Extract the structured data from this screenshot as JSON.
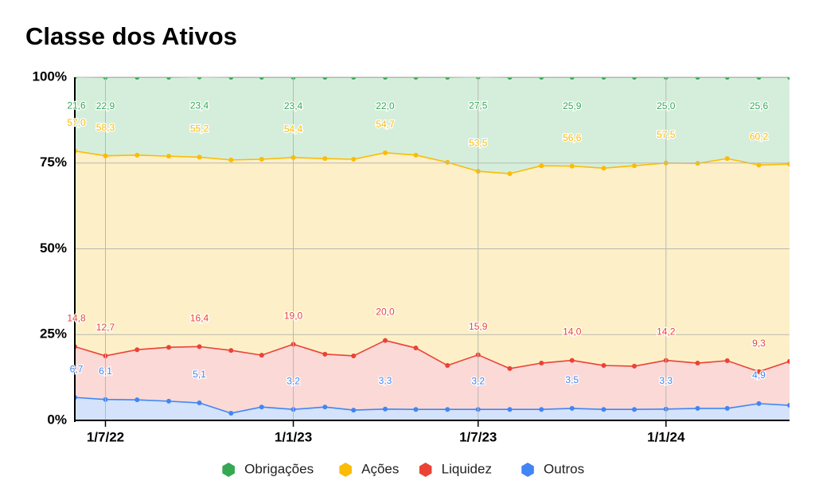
{
  "chart_data": {
    "type": "stacked_area",
    "title": "Classe dos Ativos",
    "x": [
      "2022-06-01",
      "2022-07-01",
      "2022-08-01",
      "2022-09-01",
      "2022-10-01",
      "2022-11-01",
      "2022-12-01",
      "2023-01-01",
      "2023-02-01",
      "2023-03-01",
      "2023-04-01",
      "2023-05-01",
      "2023-06-01",
      "2023-07-01",
      "2023-08-01",
      "2023-09-01",
      "2023-10-01",
      "2023-11-01",
      "2023-12-01",
      "2024-01-01",
      "2024-02-01",
      "2024-03-01",
      "2024-04-01",
      "2024-05-01"
    ],
    "xlim": [
      "2022-06-01",
      "2024-05-01"
    ],
    "xticks": [
      {
        "value": "2022-07-01",
        "label": "1/7/22"
      },
      {
        "value": "2023-01-01",
        "label": "1/1/23"
      },
      {
        "value": "2023-07-01",
        "label": "1/7/23"
      },
      {
        "value": "2024-01-01",
        "label": "1/1/24"
      }
    ],
    "ylim": [
      0,
      100
    ],
    "yticks": [
      {
        "value": 0,
        "label": "0%"
      },
      {
        "value": 25,
        "label": "25%"
      },
      {
        "value": 50,
        "label": "50%"
      },
      {
        "value": 75,
        "label": "75%"
      },
      {
        "value": 100,
        "label": "100%"
      }
    ],
    "grid": true,
    "legend": "bottom",
    "series": [
      {
        "name": "Obrigações",
        "color": "#34a853",
        "fill": "#d5eedc",
        "values": [
          21.6,
          22.9,
          22.7,
          23.0,
          23.4,
          24.1,
          23.9,
          23.4,
          23.7,
          23.9,
          22.0,
          22.7,
          24.8,
          27.5,
          28.1,
          25.8,
          25.9,
          26.5,
          25.8,
          25.0,
          25.1,
          23.7,
          25.6,
          25.3
        ],
        "value_labels": [
          "21,6",
          "22,9",
          null,
          null,
          "23,4",
          null,
          null,
          "23,4",
          null,
          null,
          "22,0",
          null,
          null,
          "27,5",
          null,
          null,
          "25,9",
          null,
          null,
          "25,0",
          null,
          null,
          "25,6",
          null
        ]
      },
      {
        "name": "Ações",
        "color": "#fbbc04",
        "fill": "#fdf0c8",
        "values": [
          57.0,
          58.3,
          56.7,
          55.7,
          55.2,
          55.5,
          57.1,
          54.4,
          57.0,
          57.3,
          54.7,
          56.2,
          59.2,
          53.5,
          56.8,
          57.5,
          56.6,
          57.5,
          58.4,
          57.5,
          58.2,
          58.9,
          60.2,
          57.5
        ],
        "value_labels": [
          "57,0",
          "58,3",
          null,
          null,
          "55,2",
          null,
          null,
          "54,4",
          null,
          null,
          "54,7",
          null,
          null,
          "53,5",
          null,
          null,
          "56,6",
          null,
          null,
          "57,5",
          null,
          null,
          "60,2",
          null
        ]
      },
      {
        "name": "Liquidez",
        "color": "#ea4335",
        "fill": "#fad9d7",
        "values": [
          14.8,
          12.7,
          14.6,
          15.7,
          16.4,
          18.3,
          15.1,
          19.0,
          15.4,
          15.8,
          20.0,
          17.9,
          12.8,
          15.9,
          11.9,
          13.5,
          14.0,
          12.8,
          12.6,
          14.2,
          13.2,
          13.9,
          9.3,
          12.8
        ],
        "value_labels": [
          "14,8",
          "12,7",
          null,
          null,
          "16,4",
          null,
          null,
          "19,0",
          null,
          null,
          "20,0",
          null,
          null,
          "15,9",
          null,
          null,
          "14,0",
          null,
          null,
          "14,2",
          null,
          null,
          "9,3",
          null
        ]
      },
      {
        "name": "Outros",
        "color": "#4285f4",
        "fill": "#d4e3fb",
        "values": [
          6.7,
          6.1,
          6.0,
          5.6,
          5.1,
          2.1,
          3.9,
          3.2,
          3.9,
          3.0,
          3.3,
          3.2,
          3.2,
          3.2,
          3.2,
          3.2,
          3.5,
          3.2,
          3.2,
          3.3,
          3.5,
          3.5,
          4.9,
          4.4
        ],
        "value_labels": [
          "6,7",
          "6,1",
          null,
          null,
          "5,1",
          null,
          null,
          "3,2",
          null,
          null,
          "3,3",
          null,
          null,
          "3,2",
          null,
          null,
          "3,5",
          null,
          null,
          "3,3",
          null,
          null,
          "4,9",
          null
        ]
      }
    ]
  }
}
